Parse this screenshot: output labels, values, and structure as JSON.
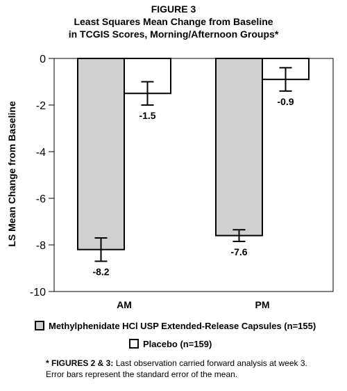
{
  "figure_label": "FIGURE 3",
  "title_line1": "Least Squares Mean Change from Baseline",
  "title_line2": "in TCGIS Scores, Morning/Afternoon Groups*",
  "chart_data": {
    "type": "bar",
    "title": "Least Squares Mean Change from Baseline in TCGIS Scores, Morning/Afternoon Groups*",
    "xlabel": "",
    "ylabel": "LS Mean Change from Baseline",
    "ylim": [
      -10,
      0
    ],
    "yticks": [
      0,
      -2,
      -4,
      -6,
      -8,
      -10
    ],
    "ytick_labels": [
      "0",
      "-2",
      "-4",
      "-6",
      "-8",
      "-10"
    ],
    "categories": [
      "AM",
      "PM"
    ],
    "grid": false,
    "legend_position": "bottom",
    "series": [
      {
        "name": "Methylphenidate HCl USP Extended-Release Capsules (n=155)",
        "values": [
          -8.2,
          -7.6
        ],
        "error": [
          0.5,
          0.25
        ],
        "labels": [
          "-8.2",
          "-7.6"
        ],
        "color": "#d0d0d0"
      },
      {
        "name": "Placebo (n=159)",
        "values": [
          -1.5,
          -0.9
        ],
        "error": [
          0.5,
          0.5
        ],
        "labels": [
          "-1.5",
          "-0.9"
        ],
        "color": "#ffffff"
      }
    ]
  },
  "legend": {
    "item1": "Methylphenidate HCl USP Extended-Release Capsules (n=155)",
    "item2": "Placebo (n=159)"
  },
  "footnote": {
    "bold_part": "* FIGURES 2 & 3:",
    "line1_rest": " Last observation carried forward analysis at week 3.",
    "line2": "Error bars represent the standard error of the mean."
  }
}
